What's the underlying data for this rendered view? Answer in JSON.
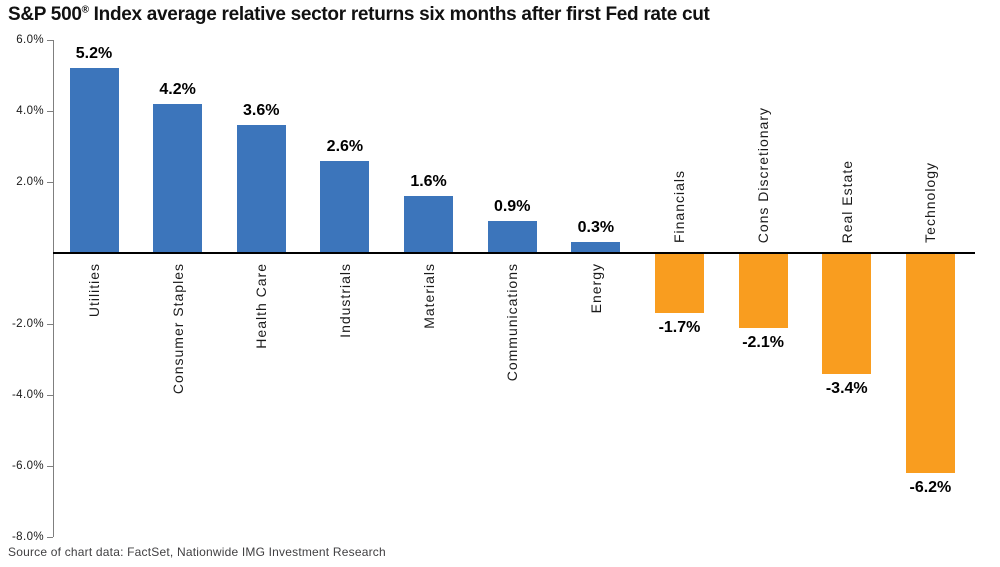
{
  "title": {
    "pre": "S&P 500",
    "reg": "®",
    "rest": " Index average relative sector returns six months after first Fed rate cut"
  },
  "source": "Source of chart data: FactSet, Nationwide IMG Investment Research",
  "colors": {
    "positive_bar": "#3c75bb",
    "negative_bar": "#f99d1f",
    "axis": "#7f7f7f",
    "zero_line": "#000000",
    "label_text": "#1a1a1a",
    "source_text": "#414042"
  },
  "chart_data": {
    "type": "bar",
    "title": "S&P 500® Index average relative sector returns six months after first Fed rate cut",
    "xlabel": "",
    "ylabel": "",
    "ylim": [
      -8.0,
      6.0
    ],
    "grid": false,
    "legend_position": "none",
    "categories": [
      "Utilities",
      "Consumer Staples",
      "Health Care",
      "Industrials",
      "Materials",
      "Communications",
      "Energy",
      "Financials",
      "Cons Discretionary",
      "Real Estate",
      "Technology"
    ],
    "values": [
      5.2,
      4.2,
      3.6,
      2.6,
      1.6,
      0.9,
      0.3,
      -1.7,
      -2.1,
      -3.4,
      -6.2
    ],
    "value_labels": [
      "5.2%",
      "4.2%",
      "3.6%",
      "2.6%",
      "1.6%",
      "0.9%",
      "0.3%",
      "-1.7%",
      "-2.1%",
      "-3.4%",
      "-6.2%"
    ],
    "yticks": [
      6.0,
      4.0,
      2.0,
      -2.0,
      -4.0,
      -6.0,
      -8.0
    ],
    "ytick_labels": [
      "6.0%",
      "4.0%",
      "2.0%",
      "-2.0%",
      "-4.0%",
      "-6.0%",
      "-8.0%"
    ],
    "bar_color_rule": "positive bars blue, negative bars orange"
  }
}
